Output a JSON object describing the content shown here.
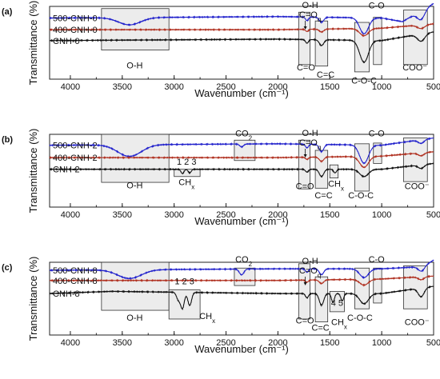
{
  "chart_data": [
    {
      "panel": "(a)",
      "type": "line",
      "ylabel": "Transmittance (%)",
      "xlabel": "Wavenumber (cm⁻¹)",
      "xlim": [
        4200,
        500
      ],
      "x_ticks": [
        "4000",
        "3500",
        "3000",
        "2500",
        "2000",
        "1500",
        "1000",
        "500"
      ],
      "series": [
        {
          "name": "500-CNH-0",
          "color": "#2222cc",
          "baseline": 0.84,
          "dips": [
            [
              3430,
              0.1,
              150
            ],
            [
              1720,
              0.05,
              20
            ],
            [
              1580,
              0.07,
              30
            ],
            [
              1170,
              0.22,
              60
            ],
            [
              620,
              0.12,
              50
            ]
          ],
          "trend": [
            [
              4200,
              0.0
            ],
            [
              3000,
              0.01
            ],
            [
              2000,
              0.02
            ],
            [
              1000,
              0.0
            ],
            [
              800,
              -0.05
            ],
            [
              500,
              0.2
            ]
          ]
        },
        {
          "name": "400-CNH-0",
          "color": "#b03020",
          "baseline": 0.68,
          "dips": [
            [
              1720,
              0.03,
              20
            ],
            [
              1580,
              0.04,
              30
            ],
            [
              1170,
              0.1,
              60
            ],
            [
              620,
              0.05,
              50
            ]
          ],
          "trend": [
            [
              4200,
              0.0
            ],
            [
              2000,
              0.0
            ],
            [
              1000,
              0.02
            ],
            [
              500,
              0.08
            ]
          ]
        },
        {
          "name": "CNH-0",
          "color": "#111111",
          "baseline": 0.53,
          "dips": [
            [
              1720,
              0.05,
              20
            ],
            [
              1580,
              0.08,
              30
            ],
            [
              1170,
              0.3,
              60
            ],
            [
              620,
              0.1,
              50
            ]
          ],
          "trend": [
            [
              4200,
              0.0
            ],
            [
              2000,
              0.02
            ],
            [
              1000,
              0.0
            ],
            [
              500,
              0.12
            ]
          ]
        }
      ],
      "boxes": [
        {
          "x1": 3700,
          "x2": 3050,
          "y1": 0.4,
          "y2": 0.97
        },
        {
          "x1": 1800,
          "x2": 1690,
          "y1": 0.2,
          "y2": 0.92
        },
        {
          "x1": 1640,
          "x2": 1520,
          "y1": 0.18,
          "y2": 0.8
        },
        {
          "x1": 1260,
          "x2": 1120,
          "y1": 0.1,
          "y2": 0.78
        },
        {
          "x1": 1080,
          "x2": 1000,
          "y1": 0.2,
          "y2": 0.85
        },
        {
          "x1": 790,
          "x2": 560,
          "y1": 0.2,
          "y2": 0.95
        }
      ],
      "annotations": [
        {
          "text": "O-H",
          "x": 3380,
          "y": 0.15
        },
        {
          "text": "C=O",
          "x": 1730,
          "y": 0.12
        },
        {
          "text": "C=C",
          "x": 1540,
          "y": 0.02
        },
        {
          "text": "C-O-C",
          "x": 1170,
          "y": -0.06
        },
        {
          "text": "COO⁻",
          "x": 680,
          "y": 0.12
        },
        {
          "text": "C-O",
          "x": 1050,
          "y": 0.97
        }
      ],
      "top_annotation": {
        "line1": "O-H",
        "line2": "C=O",
        "sub": "q",
        "x": 1690
      }
    },
    {
      "panel": "(b)",
      "type": "line",
      "ylabel": "Transmittance (%)",
      "xlabel": "Wavenumber (cm⁻¹)",
      "xlim": [
        4200,
        500
      ],
      "x_ticks": [
        "4000",
        "3500",
        "3000",
        "2500",
        "2000",
        "1500",
        "1000",
        "500"
      ],
      "series": [
        {
          "name": "500-CNH-2",
          "color": "#2222cc",
          "baseline": 0.85,
          "dips": [
            [
              3430,
              0.16,
              160
            ],
            [
              2350,
              0.04,
              25
            ],
            [
              1720,
              0.05,
              20
            ],
            [
              1580,
              0.1,
              30
            ],
            [
              1170,
              0.25,
              60
            ],
            [
              620,
              0.05,
              40
            ]
          ],
          "trend": [
            [
              4200,
              0.0
            ],
            [
              2000,
              0.02
            ],
            [
              1000,
              0.0
            ],
            [
              500,
              0.1
            ]
          ]
        },
        {
          "name": "400-CNH-2",
          "color": "#b03020",
          "baseline": 0.68,
          "dips": [
            [
              1720,
              0.03,
              20
            ],
            [
              1580,
              0.06,
              30
            ],
            [
              1170,
              0.15,
              60
            ],
            [
              620,
              0.04,
              40
            ]
          ],
          "trend": [
            [
              4200,
              0.0
            ],
            [
              2000,
              0.0
            ],
            [
              1000,
              0.02
            ],
            [
              500,
              0.08
            ]
          ]
        },
        {
          "name": "CNH-2",
          "color": "#111111",
          "baseline": 0.52,
          "dips": [
            [
              2920,
              0.06,
              20
            ],
            [
              2850,
              0.05,
              20
            ],
            [
              1720,
              0.04,
              20
            ],
            [
              1580,
              0.1,
              30
            ],
            [
              1450,
              0.05,
              20
            ],
            [
              1170,
              0.1,
              60
            ],
            [
              620,
              0.05,
              40
            ]
          ],
          "trend": [
            [
              4200,
              0.0
            ],
            [
              2000,
              0.0
            ],
            [
              1000,
              0.0
            ],
            [
              500,
              0.08
            ]
          ]
        }
      ],
      "boxes": [
        {
          "x1": 3700,
          "x2": 3050,
          "y1": 0.34,
          "y2": 1.0
        },
        {
          "x1": 3000,
          "x2": 2750,
          "y1": 0.42,
          "y2": 0.52
        },
        {
          "x1": 2420,
          "x2": 2220,
          "y1": 0.64,
          "y2": 0.92
        },
        {
          "x1": 1800,
          "x2": 1690,
          "y1": 0.25,
          "y2": 0.92
        },
        {
          "x1": 1640,
          "x2": 1520,
          "y1": 0.26,
          "y2": 0.78
        },
        {
          "x1": 1500,
          "x2": 1420,
          "y1": 0.4,
          "y2": 0.58
        },
        {
          "x1": 1260,
          "x2": 1120,
          "y1": 0.22,
          "y2": 0.87
        },
        {
          "x1": 1080,
          "x2": 1000,
          "y1": 0.6,
          "y2": 0.88
        },
        {
          "x1": 790,
          "x2": 560,
          "y1": 0.35,
          "y2": 0.95
        }
      ],
      "annotations": [
        {
          "text": "O-H",
          "x": 3380,
          "y": 0.26
        },
        {
          "text": "CH",
          "sub": "x",
          "x": 2880,
          "y": 0.3
        },
        {
          "text": "1 2 3",
          "x": 2880,
          "y": 0.58
        },
        {
          "text": "CO",
          "sub": "2",
          "x": 2330,
          "y": 0.97
        },
        {
          "text": "C=O",
          "x": 1740,
          "y": 0.25
        },
        {
          "text": "C=C",
          "x": 1560,
          "y": 0.12
        },
        {
          "text": "CH",
          "sub": "x",
          "x": 1440,
          "y": 0.28
        },
        {
          "text": "C-O-C",
          "x": 1200,
          "y": 0.12
        },
        {
          "text": "COO⁻",
          "x": 660,
          "y": 0.25
        },
        {
          "text": "C-O",
          "x": 1050,
          "y": 0.97
        }
      ],
      "top_annotation": {
        "line1": "O-H",
        "line2": "C=O",
        "sub": "q",
        "x": 1690
      }
    },
    {
      "panel": "(c)",
      "type": "line",
      "ylabel": "Transmittance (%)",
      "xlabel": "Wavenumber (cm⁻¹)",
      "xlim": [
        4200,
        500
      ],
      "x_ticks": [
        "4000",
        "3500",
        "3000",
        "2500",
        "2000",
        "1500",
        "1000",
        "500"
      ],
      "series": [
        {
          "name": "500-CNH-8",
          "color": "#2222cc",
          "baseline": 0.89,
          "dips": [
            [
              3430,
              0.12,
              160
            ],
            [
              2350,
              0.08,
              30
            ],
            [
              1720,
              0.05,
              20
            ],
            [
              1580,
              0.08,
              30
            ],
            [
              1170,
              0.12,
              60
            ],
            [
              620,
              0.06,
              40
            ]
          ],
          "trend": [
            [
              4200,
              0.0
            ],
            [
              2000,
              0.02
            ],
            [
              1000,
              0.02
            ],
            [
              600,
              0.05
            ],
            [
              500,
              0.14
            ]
          ]
        },
        {
          "name": "400-CNH-8",
          "color": "#b03020",
          "baseline": 0.75,
          "dips": [
            [
              1720,
              0.03,
              20
            ],
            [
              1580,
              0.05,
              30
            ],
            [
              1170,
              0.08,
              60
            ],
            [
              620,
              0.04,
              40
            ]
          ],
          "trend": [
            [
              4200,
              0.0
            ],
            [
              2000,
              0.0
            ],
            [
              1000,
              0.02
            ],
            [
              500,
              0.06
            ]
          ]
        },
        {
          "name": "CNH-8",
          "color": "#111111",
          "baseline": 0.57,
          "dips": [
            [
              2960,
              0.1,
              25
            ],
            [
              2920,
              0.22,
              25
            ],
            [
              2850,
              0.18,
              25
            ],
            [
              1720,
              0.06,
              20
            ],
            [
              1580,
              0.16,
              30
            ],
            [
              1470,
              0.12,
              20
            ],
            [
              1380,
              0.1,
              20
            ],
            [
              1170,
              0.14,
              60
            ],
            [
              620,
              0.12,
              40
            ]
          ],
          "trend": [
            [
              4200,
              0.0
            ],
            [
              3600,
              0.03
            ],
            [
              2000,
              0.0
            ],
            [
              1000,
              0.0
            ],
            [
              500,
              0.1
            ]
          ]
        }
      ],
      "boxes": [
        {
          "x1": 3700,
          "x2": 3050,
          "y1": 0.34,
          "y2": 1.0
        },
        {
          "x1": 3050,
          "x2": 2750,
          "y1": 0.22,
          "y2": 0.62
        },
        {
          "x1": 2420,
          "x2": 2220,
          "y1": 0.68,
          "y2": 0.92
        },
        {
          "x1": 1800,
          "x2": 1690,
          "y1": 0.22,
          "y2": 0.98
        },
        {
          "x1": 1640,
          "x2": 1520,
          "y1": 0.18,
          "y2": 0.8
        },
        {
          "x1": 1500,
          "x2": 1360,
          "y1": 0.32,
          "y2": 0.6
        },
        {
          "x1": 1260,
          "x2": 1120,
          "y1": 0.36,
          "y2": 0.92
        },
        {
          "x1": 1080,
          "x2": 1000,
          "y1": 0.44,
          "y2": 0.92
        },
        {
          "x1": 790,
          "x2": 560,
          "y1": 0.36,
          "y2": 0.95
        }
      ],
      "annotations": [
        {
          "text": "O-H",
          "x": 3380,
          "y": 0.2
        },
        {
          "text": "1 2 3",
          "x": 2900,
          "y": 0.7
        },
        {
          "text": "CH",
          "sub": "x",
          "x": 2680,
          "y": 0.22
        },
        {
          "text": "CO",
          "sub": "2",
          "x": 2330,
          "y": 1.0
        },
        {
          "text": "C=O",
          "x": 1740,
          "y": 0.16
        },
        {
          "text": "C=C",
          "x": 1590,
          "y": 0.06
        },
        {
          "text": "4 5",
          "x": 1430,
          "y": 0.4
        },
        {
          "text": "CH",
          "sub": "x",
          "x": 1410,
          "y": 0.14
        },
        {
          "text": "C-O-C",
          "x": 1210,
          "y": 0.2
        },
        {
          "text": "C-O",
          "x": 1050,
          "y": 1.0
        },
        {
          "text": "COO⁻",
          "x": 660,
          "y": 0.14
        }
      ],
      "top_annotation": {
        "line1": "O-H",
        "line2": "C=O",
        "sub": "q",
        "x": 1690
      }
    }
  ]
}
